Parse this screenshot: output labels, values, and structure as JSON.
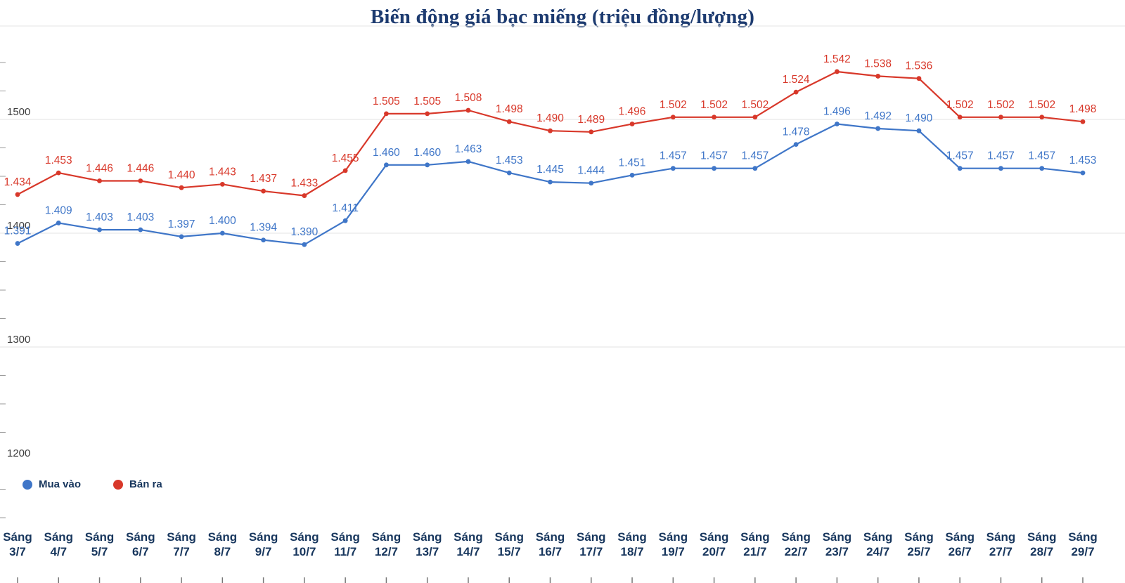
{
  "chart_data": {
    "type": "line",
    "title": "Biến động giá bạc miếng (triệu đồng/lượng)",
    "title_color": "#1d3b70",
    "category_prefix": "Sáng",
    "categories": [
      "3/7",
      "4/7",
      "5/7",
      "6/7",
      "7/7",
      "8/7",
      "9/7",
      "10/7",
      "11/7",
      "12/7",
      "13/7",
      "14/7",
      "15/7",
      "16/7",
      "17/7",
      "18/7",
      "19/7",
      "20/7",
      "21/7",
      "22/7",
      "23/7",
      "24/7",
      "25/7",
      "26/7",
      "27/7",
      "28/7",
      "29/7"
    ],
    "series": [
      {
        "name": "Mua vào",
        "color": "#3f76c8",
        "values": [
          1391,
          1409,
          1403,
          1403,
          1397,
          1400,
          1394,
          1390,
          1411,
          1460,
          1460,
          1463,
          1453,
          1445,
          1444,
          1451,
          1457,
          1457,
          1457,
          1478,
          1496,
          1492,
          1490,
          1457,
          1457,
          1457,
          1453
        ],
        "labels": [
          "1.391",
          "1.409",
          "1.403",
          "1.403",
          "1.397",
          "1.400",
          "1.394",
          "1.390",
          "1.411",
          "1.460",
          "1.460",
          "1.463",
          "1.453",
          "1.445",
          "1.444",
          "1.451",
          "1.457",
          "1.457",
          "1.457",
          "1.478",
          "1.496",
          "1.492",
          "1.490",
          "1.457",
          "1.457",
          "1.457",
          "1.453"
        ]
      },
      {
        "name": "Bán ra",
        "color": "#d8382a",
        "values": [
          1434,
          1453,
          1446,
          1446,
          1440,
          1443,
          1437,
          1433,
          1455,
          1505,
          1505,
          1508,
          1498,
          1490,
          1489,
          1496,
          1502,
          1502,
          1502,
          1524,
          1542,
          1538,
          1536,
          1502,
          1502,
          1502,
          1498
        ],
        "labels": [
          "1.434",
          "1.453",
          "1.446",
          "1.446",
          "1.440",
          "1.443",
          "1.437",
          "1.433",
          "1.455",
          "1.505",
          "1.505",
          "1.508",
          "1.498",
          "1.490",
          "1.489",
          "1.496",
          "1.502",
          "1.502",
          "1.502",
          "1.524",
          "1.542",
          "1.538",
          "1.536",
          "1.502",
          "1.502",
          "1.502",
          "1.498"
        ]
      }
    ],
    "yticks": [
      1200,
      1300,
      1400,
      1500
    ],
    "ylim": [
      1200,
      1560
    ],
    "grid": true,
    "legend_position": "bottom-left",
    "axis_label_color": "#3c3c3c",
    "xlabel_color": "#17365d"
  }
}
